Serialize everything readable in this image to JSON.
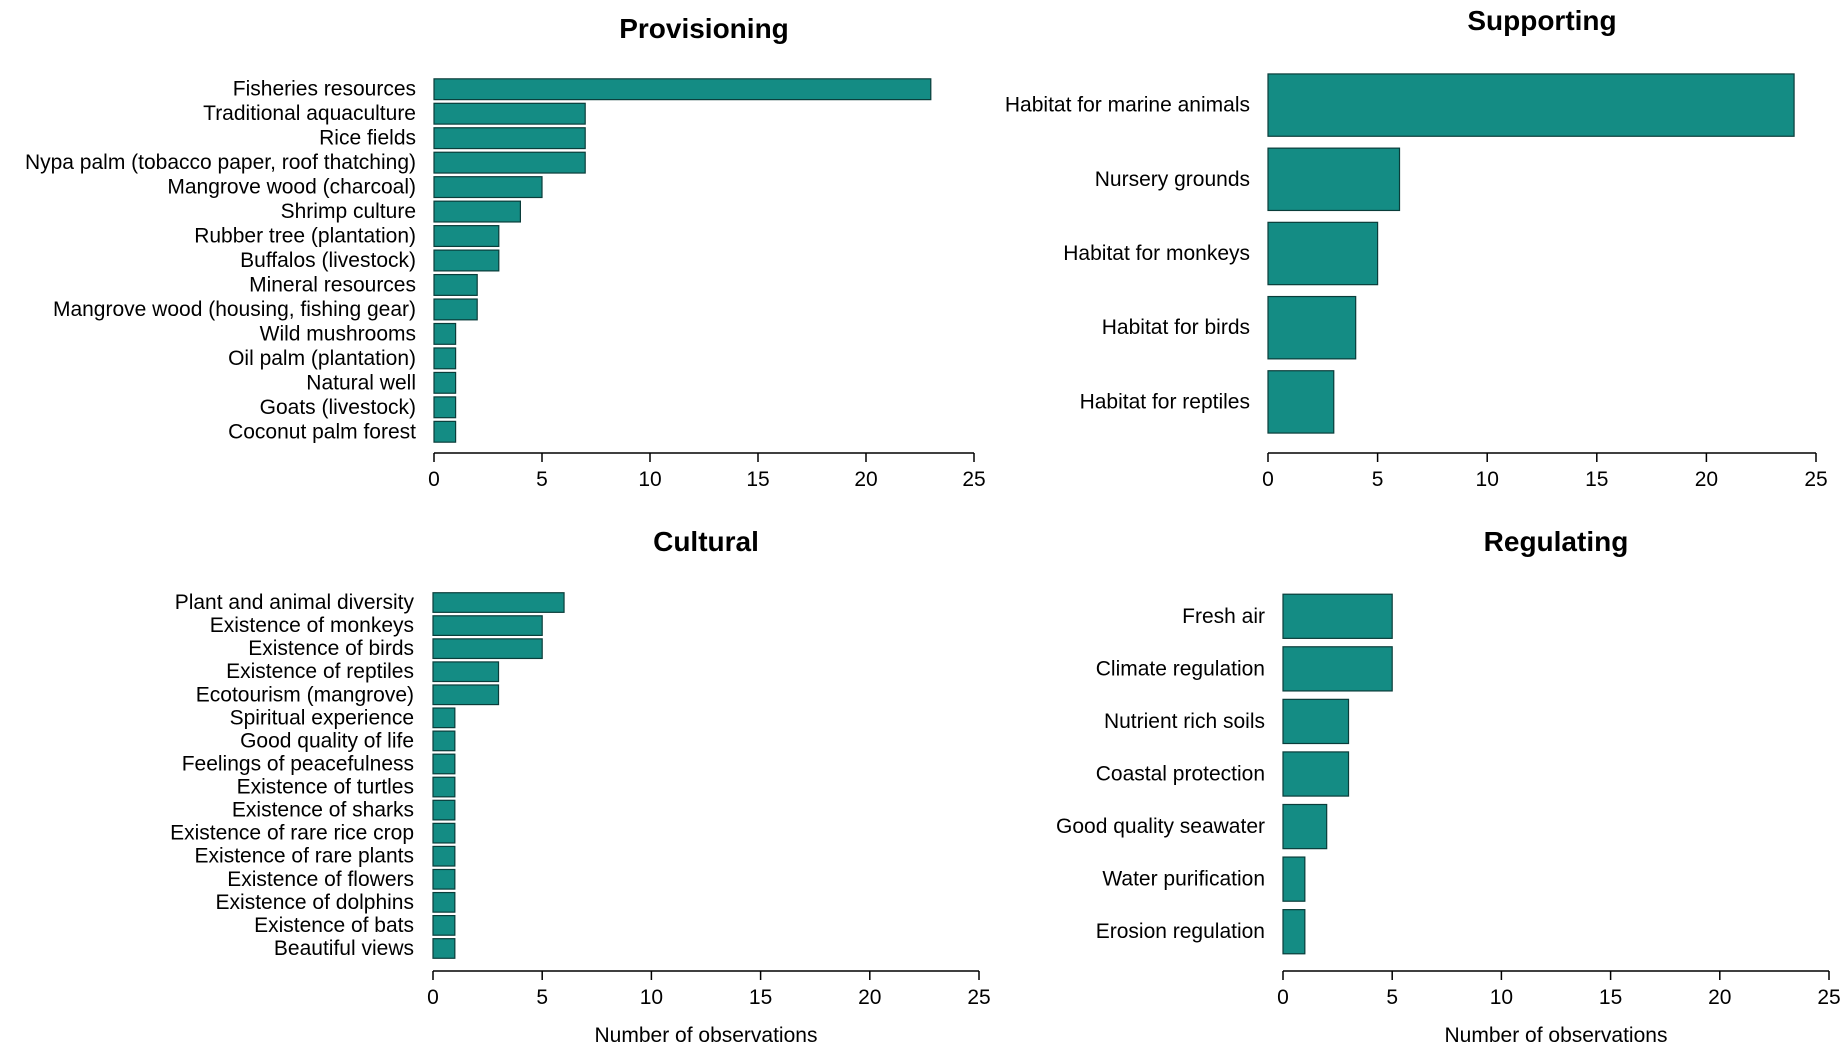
{
  "colors": {
    "bar_fill": "#148C84",
    "bar_stroke": "#0a3d3a",
    "axis": "#000000"
  },
  "chart_data": [
    {
      "type": "bar",
      "orientation": "horizontal",
      "title": "Provisioning",
      "xlabel": "",
      "xlim": [
        0,
        25
      ],
      "xticks": [
        0,
        5,
        10,
        15,
        20,
        25
      ],
      "categories": [
        "Fisheries resources",
        "Traditional aquaculture",
        "Rice fields",
        "Nypa palm (tobacco paper, roof thatching)",
        "Mangrove wood (charcoal)",
        "Shrimp culture",
        "Rubber tree (plantation)",
        "Buffalos (livestock)",
        "Mineral resources",
        "Mangrove wood (housing, fishing gear)",
        "Wild mushrooms",
        "Oil palm (plantation)",
        "Natural well",
        "Goats (livestock)",
        "Coconut palm forest"
      ],
      "values": [
        23,
        7,
        7,
        7,
        5,
        4,
        3,
        3,
        2,
        2,
        1,
        1,
        1,
        1,
        1
      ]
    },
    {
      "type": "bar",
      "orientation": "horizontal",
      "title": "Supporting",
      "xlabel": "",
      "xlim": [
        0,
        25
      ],
      "xticks": [
        0,
        5,
        10,
        15,
        20,
        25
      ],
      "categories": [
        "Habitat for marine animals",
        "Nursery grounds",
        "Habitat for monkeys",
        "Habitat for birds",
        "Habitat for reptiles"
      ],
      "values": [
        24,
        6,
        5,
        4,
        3
      ]
    },
    {
      "type": "bar",
      "orientation": "horizontal",
      "title": "Cultural",
      "xlabel": "Number of observations",
      "xlim": [
        0,
        25
      ],
      "xticks": [
        0,
        5,
        10,
        15,
        20,
        25
      ],
      "categories": [
        "Plant and animal diversity",
        "Existence of monkeys",
        "Existence of birds",
        "Existence of reptiles",
        "Ecotourism (mangrove)",
        "Spiritual experience",
        "Good quality of life",
        "Feelings of peacefulness",
        "Existence of turtles",
        "Existence of sharks",
        "Existence of rare rice crop",
        "Existence of rare plants",
        "Existence of flowers",
        "Existence of dolphins",
        "Existence of bats",
        "Beautiful views"
      ],
      "values": [
        6,
        5,
        5,
        3,
        3,
        1,
        1,
        1,
        1,
        1,
        1,
        1,
        1,
        1,
        1,
        1
      ]
    },
    {
      "type": "bar",
      "orientation": "horizontal",
      "title": "Regulating",
      "xlabel": "Number of observations",
      "xlim": [
        0,
        25
      ],
      "xticks": [
        0,
        5,
        10,
        15,
        20,
        25
      ],
      "categories": [
        "Fresh air",
        "Climate regulation",
        "Nutrient rich soils",
        "Coastal protection",
        "Good quality seawater",
        "Water purification",
        "Erosion regulation"
      ],
      "values": [
        5,
        5,
        3,
        3,
        2,
        1,
        1
      ]
    }
  ]
}
